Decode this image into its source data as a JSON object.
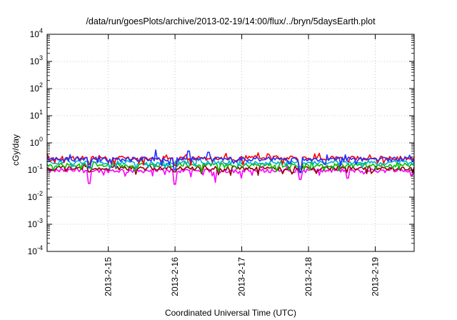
{
  "chart_data": {
    "type": "line",
    "title": "/data/run/goesPlots/archive/2013-02-19/14:00/flux/../bryn/5daysEarth.plot",
    "xlabel": "Coordinated Universal Time (UTC)",
    "ylabel": "cGy/day",
    "yscale": "log",
    "ylim": [
      0.0001,
      10000
    ],
    "xlim": [
      "2013-02-14T02:00",
      "2013-02-19T14:00"
    ],
    "grid": true,
    "y_ticks": [
      {
        "value": 0.0001,
        "base": "10",
        "exp": "-4"
      },
      {
        "value": 0.001,
        "base": "10",
        "exp": "-3"
      },
      {
        "value": 0.01,
        "base": "10",
        "exp": "-2"
      },
      {
        "value": 0.1,
        "base": "10",
        "exp": "-1"
      },
      {
        "value": 1,
        "base": "10",
        "exp": "0"
      },
      {
        "value": 10,
        "base": "10",
        "exp": "1"
      },
      {
        "value": 100,
        "base": "10",
        "exp": "2"
      },
      {
        "value": 1000,
        "base": "10",
        "exp": "3"
      },
      {
        "value": 10000,
        "base": "10",
        "exp": "4"
      }
    ],
    "x_ticks": [
      {
        "value": "2013-02-15T00:00",
        "label": "2013-2-15"
      },
      {
        "value": "2013-02-16T00:00",
        "label": "2013-2-16"
      },
      {
        "value": "2013-02-17T00:00",
        "label": "2013-2-17"
      },
      {
        "value": "2013-02-18T00:00",
        "label": "2013-2-18"
      },
      {
        "value": "2013-02-19T00:00",
        "label": "2013-2-19"
      }
    ],
    "series": [
      {
        "color": "#ff00ff",
        "level": 0.095,
        "dips": [
          [
            "2013-02-14T17:00",
            0.032
          ],
          [
            "2013-02-16T00:00",
            0.03
          ],
          [
            "2013-02-16T14:30",
            0.035
          ],
          [
            "2013-02-17T21:00",
            0.045
          ],
          [
            "2013-02-18T14:00",
            0.05
          ]
        ]
      },
      {
        "color": "#8b0000",
        "level": 0.115,
        "dips": [
          [
            "2013-02-14T17:00",
            0.085
          ],
          [
            "2013-02-16T00:00",
            0.085
          ],
          [
            "2013-02-17T21:00",
            0.085
          ]
        ]
      },
      {
        "color": "#00c000",
        "level": 0.15,
        "dips": [
          [
            "2013-02-17T21:00",
            0.11
          ]
        ]
      },
      {
        "color": "#00b0d0",
        "level": 0.185,
        "dips": [
          [
            "2013-02-17T21:00",
            0.13
          ]
        ]
      },
      {
        "color": "#ff0000",
        "level": 0.27,
        "dips": [
          [
            "2013-02-14T17:00",
            0.16
          ],
          [
            "2013-02-16T00:00",
            0.15
          ],
          [
            "2013-02-17T21:00",
            0.09
          ]
        ]
      },
      {
        "color": "#2030ff",
        "level": 0.25,
        "dips": [
          [
            "2013-02-14T17:00",
            0.12
          ],
          [
            "2013-02-16T00:00",
            0.1
          ],
          [
            "2013-02-17T21:00",
            0.08
          ]
        ],
        "spikes": [
          [
            "2013-02-15T17:00",
            0.55
          ],
          [
            "2013-02-16T05:00",
            0.5
          ],
          [
            "2013-02-16T12:00",
            0.45
          ]
        ]
      }
    ]
  }
}
